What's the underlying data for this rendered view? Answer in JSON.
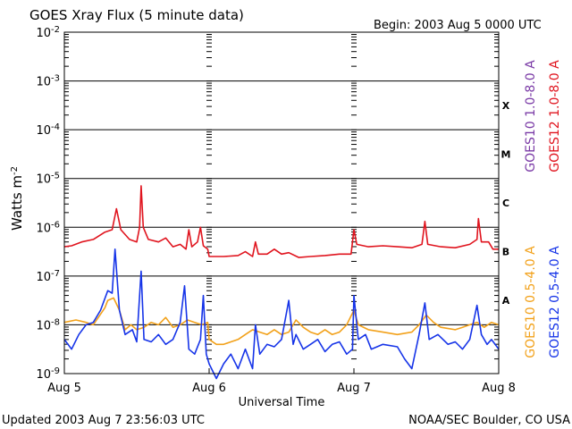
{
  "chart_data": {
    "type": "line",
    "title": "GOES Xray Flux (5 minute data)",
    "begin_label": "Begin:  2003 Aug 5 0000 UTC",
    "xlabel": "Universal Time",
    "ylabel": "Watts m",
    "ylabel_exponent": "-2",
    "yscale": "log",
    "ylim_exp": [
      -9,
      -2
    ],
    "xlim_days": [
      0,
      3
    ],
    "x_ticks": [
      {
        "day": 0,
        "label": "Aug 5"
      },
      {
        "day": 1,
        "label": "Aug 6"
      },
      {
        "day": 2,
        "label": "Aug 7"
      },
      {
        "day": 3,
        "label": "Aug 8"
      }
    ],
    "y_ticks": [
      {
        "exp": -2,
        "base": "10",
        "sup": "-2"
      },
      {
        "exp": -3,
        "base": "10",
        "sup": "-3"
      },
      {
        "exp": -4,
        "base": "10",
        "sup": "-4"
      },
      {
        "exp": -5,
        "base": "10",
        "sup": "-5"
      },
      {
        "exp": -6,
        "base": "10",
        "sup": "-6"
      },
      {
        "exp": -7,
        "base": "10",
        "sup": "-7"
      },
      {
        "exp": -8,
        "base": "10",
        "sup": "-8"
      },
      {
        "exp": -9,
        "base": "10",
        "sup": "-9"
      }
    ],
    "flare_classes": [
      {
        "label": "X",
        "exp": -3.5
      },
      {
        "label": "M",
        "exp": -4.5
      },
      {
        "label": "C",
        "exp": -5.5
      },
      {
        "label": "B",
        "exp": -6.5
      },
      {
        "label": "A",
        "exp": -7.5
      }
    ],
    "series": [
      {
        "name": "GOES10 1.0-8.0 A",
        "color": "#7a3aa6",
        "values": []
      },
      {
        "name": "GOES12 1.0-8.0 A",
        "color": "#e0141e",
        "points": [
          [
            0,
            -6.4
          ],
          [
            0.05,
            -6.38
          ],
          [
            0.12,
            -6.3
          ],
          [
            0.2,
            -6.25
          ],
          [
            0.28,
            -6.1
          ],
          [
            0.33,
            -6.05
          ],
          [
            0.36,
            -5.62
          ],
          [
            0.39,
            -6.05
          ],
          [
            0.45,
            -6.25
          ],
          [
            0.5,
            -6.3
          ],
          [
            0.52,
            -6.0
          ],
          [
            0.53,
            -5.15
          ],
          [
            0.545,
            -6.0
          ],
          [
            0.58,
            -6.25
          ],
          [
            0.65,
            -6.3
          ],
          [
            0.7,
            -6.22
          ],
          [
            0.75,
            -6.4
          ],
          [
            0.8,
            -6.35
          ],
          [
            0.84,
            -6.45
          ],
          [
            0.86,
            -6.05
          ],
          [
            0.88,
            -6.4
          ],
          [
            0.92,
            -6.3
          ],
          [
            0.94,
            -6.0
          ],
          [
            0.96,
            -6.38
          ],
          [
            0.99,
            -6.45
          ],
          [
            1.0,
            -6.6
          ],
          [
            1.1,
            -6.6
          ],
          [
            1.2,
            -6.58
          ],
          [
            1.25,
            -6.5
          ],
          [
            1.3,
            -6.6
          ],
          [
            1.32,
            -6.3
          ],
          [
            1.34,
            -6.55
          ],
          [
            1.4,
            -6.55
          ],
          [
            1.45,
            -6.45
          ],
          [
            1.5,
            -6.55
          ],
          [
            1.55,
            -6.52
          ],
          [
            1.62,
            -6.62
          ],
          [
            1.7,
            -6.6
          ],
          [
            1.8,
            -6.58
          ],
          [
            1.9,
            -6.55
          ],
          [
            1.98,
            -6.55
          ],
          [
            2.0,
            -6.05
          ],
          [
            2.02,
            -6.35
          ],
          [
            2.1,
            -6.4
          ],
          [
            2.2,
            -6.38
          ],
          [
            2.3,
            -6.4
          ],
          [
            2.4,
            -6.42
          ],
          [
            2.47,
            -6.35
          ],
          [
            2.49,
            -5.88
          ],
          [
            2.51,
            -6.35
          ],
          [
            2.6,
            -6.4
          ],
          [
            2.7,
            -6.42
          ],
          [
            2.8,
            -6.35
          ],
          [
            2.85,
            -6.25
          ],
          [
            2.86,
            -5.82
          ],
          [
            2.88,
            -6.3
          ],
          [
            2.93,
            -6.3
          ],
          [
            2.96,
            -6.45
          ],
          [
            3.0,
            -6.45
          ]
        ]
      },
      {
        "name": "GOES10 0.5-4.0 A",
        "color": "#f2a11a",
        "points": [
          [
            0,
            -7.95
          ],
          [
            0.08,
            -7.9
          ],
          [
            0.15,
            -7.95
          ],
          [
            0.2,
            -8.0
          ],
          [
            0.28,
            -7.65
          ],
          [
            0.3,
            -7.5
          ],
          [
            0.34,
            -7.45
          ],
          [
            0.38,
            -7.7
          ],
          [
            0.42,
            -8.1
          ],
          [
            0.46,
            -8.0
          ],
          [
            0.5,
            -8.1
          ],
          [
            0.55,
            -8.05
          ],
          [
            0.6,
            -7.95
          ],
          [
            0.65,
            -8.0
          ],
          [
            0.7,
            -7.85
          ],
          [
            0.75,
            -8.05
          ],
          [
            0.8,
            -8.0
          ],
          [
            0.85,
            -7.9
          ],
          [
            0.9,
            -7.95
          ],
          [
            0.95,
            -8.0
          ],
          [
            0.99,
            -7.95
          ],
          [
            1.0,
            -8.3
          ],
          [
            1.05,
            -8.4
          ],
          [
            1.1,
            -8.4
          ],
          [
            1.15,
            -8.35
          ],
          [
            1.2,
            -8.3
          ],
          [
            1.25,
            -8.2
          ],
          [
            1.3,
            -8.1
          ],
          [
            1.35,
            -8.15
          ],
          [
            1.4,
            -8.2
          ],
          [
            1.45,
            -8.1
          ],
          [
            1.5,
            -8.2
          ],
          [
            1.55,
            -8.15
          ],
          [
            1.6,
            -7.9
          ],
          [
            1.65,
            -8.05
          ],
          [
            1.7,
            -8.15
          ],
          [
            1.75,
            -8.2
          ],
          [
            1.8,
            -8.1
          ],
          [
            1.85,
            -8.2
          ],
          [
            1.9,
            -8.15
          ],
          [
            1.95,
            -8.0
          ],
          [
            2.0,
            -7.7
          ],
          [
            2.03,
            -8.0
          ],
          [
            2.1,
            -8.1
          ],
          [
            2.2,
            -8.15
          ],
          [
            2.3,
            -8.2
          ],
          [
            2.4,
            -8.15
          ],
          [
            2.45,
            -8.0
          ],
          [
            2.5,
            -7.8
          ],
          [
            2.55,
            -7.95
          ],
          [
            2.6,
            -8.05
          ],
          [
            2.7,
            -8.1
          ],
          [
            2.75,
            -8.05
          ],
          [
            2.8,
            -8.0
          ],
          [
            2.85,
            -7.95
          ],
          [
            2.9,
            -8.05
          ],
          [
            2.95,
            -7.95
          ],
          [
            3.0,
            -8.0
          ]
        ]
      },
      {
        "name": "GOES12 0.5-4.0 A",
        "color": "#1634e8",
        "points": [
          [
            0,
            -8.3
          ],
          [
            0.05,
            -8.5
          ],
          [
            0.1,
            -8.2
          ],
          [
            0.15,
            -8.0
          ],
          [
            0.2,
            -7.95
          ],
          [
            0.25,
            -7.7
          ],
          [
            0.3,
            -7.3
          ],
          [
            0.33,
            -7.35
          ],
          [
            0.35,
            -6.45
          ],
          [
            0.38,
            -7.7
          ],
          [
            0.42,
            -8.2
          ],
          [
            0.47,
            -8.1
          ],
          [
            0.5,
            -8.35
          ],
          [
            0.53,
            -6.9
          ],
          [
            0.55,
            -8.3
          ],
          [
            0.6,
            -8.35
          ],
          [
            0.65,
            -8.2
          ],
          [
            0.7,
            -8.4
          ],
          [
            0.75,
            -8.3
          ],
          [
            0.8,
            -7.95
          ],
          [
            0.83,
            -7.2
          ],
          [
            0.86,
            -8.5
          ],
          [
            0.9,
            -8.6
          ],
          [
            0.94,
            -8.3
          ],
          [
            0.96,
            -7.4
          ],
          [
            0.98,
            -8.6
          ],
          [
            1.0,
            -8.8
          ],
          [
            1.05,
            -9.1
          ],
          [
            1.1,
            -8.8
          ],
          [
            1.15,
            -8.6
          ],
          [
            1.2,
            -8.9
          ],
          [
            1.25,
            -8.5
          ],
          [
            1.3,
            -8.9
          ],
          [
            1.32,
            -8.0
          ],
          [
            1.35,
            -8.6
          ],
          [
            1.4,
            -8.4
          ],
          [
            1.45,
            -8.45
          ],
          [
            1.5,
            -8.3
          ],
          [
            1.55,
            -7.5
          ],
          [
            1.58,
            -8.4
          ],
          [
            1.6,
            -8.2
          ],
          [
            1.65,
            -8.5
          ],
          [
            1.7,
            -8.4
          ],
          [
            1.75,
            -8.3
          ],
          [
            1.8,
            -8.55
          ],
          [
            1.85,
            -8.4
          ],
          [
            1.9,
            -8.35
          ],
          [
            1.95,
            -8.6
          ],
          [
            1.99,
            -8.5
          ],
          [
            2.0,
            -7.4
          ],
          [
            2.03,
            -8.3
          ],
          [
            2.08,
            -8.2
          ],
          [
            2.12,
            -8.5
          ],
          [
            2.2,
            -8.4
          ],
          [
            2.3,
            -8.45
          ],
          [
            2.35,
            -8.7
          ],
          [
            2.4,
            -8.9
          ],
          [
            2.45,
            -8.2
          ],
          [
            2.49,
            -7.55
          ],
          [
            2.52,
            -8.3
          ],
          [
            2.58,
            -8.2
          ],
          [
            2.65,
            -8.4
          ],
          [
            2.7,
            -8.35
          ],
          [
            2.75,
            -8.5
          ],
          [
            2.8,
            -8.3
          ],
          [
            2.85,
            -7.6
          ],
          [
            2.88,
            -8.2
          ],
          [
            2.92,
            -8.4
          ],
          [
            2.95,
            -8.3
          ],
          [
            3.0,
            -8.5
          ]
        ]
      }
    ]
  },
  "footer": {
    "updated": "Updated 2003 Aug  7 23:56:03 UTC",
    "credit": "NOAA/SEC Boulder, CO USA"
  }
}
